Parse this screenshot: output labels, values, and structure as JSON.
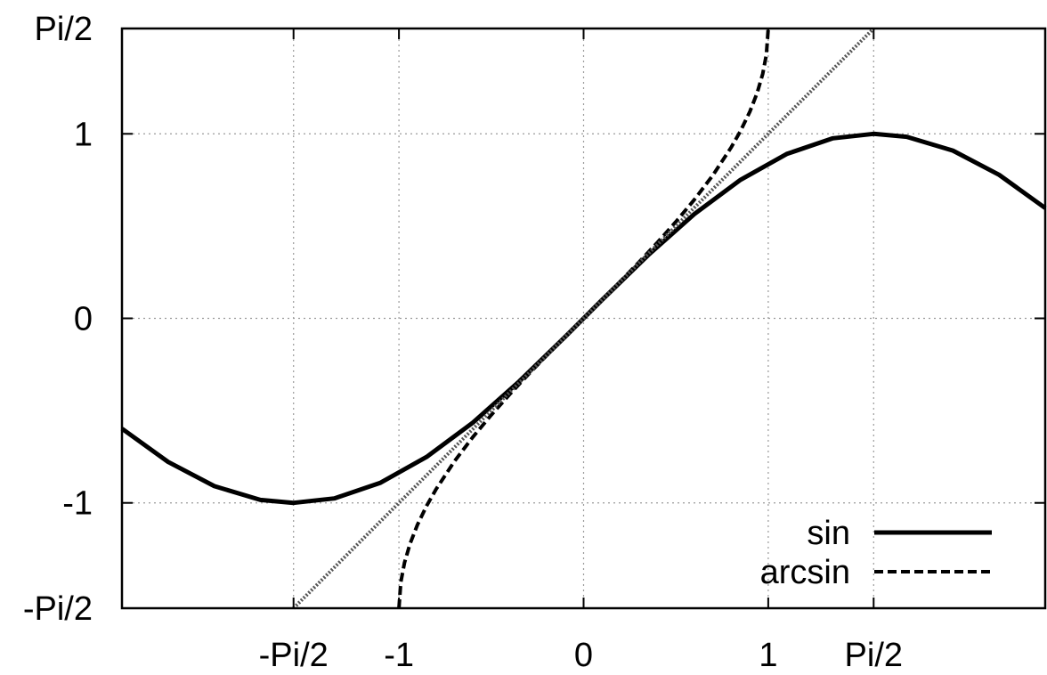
{
  "chart_data": {
    "type": "line",
    "xlim": [
      -2.5,
      2.5
    ],
    "ylim": [
      -1.5708,
      1.5708
    ],
    "grid": true,
    "legend_position": "bottom-right",
    "x_ticks": [
      {
        "value": -1.5708,
        "label": "-Pi/2"
      },
      {
        "value": -1.0,
        "label": "-1"
      },
      {
        "value": 0.0,
        "label": "0"
      },
      {
        "value": 1.0,
        "label": "1"
      },
      {
        "value": 1.5708,
        "label": "Pi/2"
      }
    ],
    "y_ticks": [
      {
        "value": 1.5708,
        "label": "Pi/2"
      },
      {
        "value": 1.0,
        "label": "1"
      },
      {
        "value": 0.0,
        "label": "0"
      },
      {
        "value": -1.0,
        "label": "-1"
      },
      {
        "value": -1.5708,
        "label": "-Pi/2"
      }
    ],
    "series": [
      {
        "name": "sin",
        "style": "solid",
        "color": "#000000",
        "x": [
          -2.5,
          -2.25,
          -2.0,
          -1.75,
          -1.5708,
          -1.35,
          -1.1,
          -0.85,
          -0.6,
          -0.35,
          -0.1,
          0.0,
          0.1,
          0.35,
          0.6,
          0.85,
          1.1,
          1.35,
          1.5708,
          1.75,
          2.0,
          2.25,
          2.5
        ],
        "y": [
          -0.598,
          -0.778,
          -0.909,
          -0.984,
          -1.0,
          -0.976,
          -0.891,
          -0.751,
          -0.565,
          -0.343,
          -0.1,
          0.0,
          0.1,
          0.343,
          0.565,
          0.751,
          0.891,
          0.976,
          1.0,
          0.984,
          0.909,
          0.778,
          0.598
        ]
      },
      {
        "name": "arcsin",
        "style": "dashed",
        "color": "#000000",
        "x": [
          -1.0,
          -0.99,
          -0.97,
          -0.94,
          -0.9,
          -0.85,
          -0.8,
          -0.7,
          -0.6,
          -0.5,
          -0.4,
          -0.3,
          -0.2,
          -0.1,
          0.0,
          0.1,
          0.2,
          0.3,
          0.4,
          0.5,
          0.6,
          0.7,
          0.8,
          0.85,
          0.9,
          0.94,
          0.97,
          0.99,
          1.0
        ],
        "y": [
          -1.5708,
          -1.4293,
          -1.3252,
          -1.2226,
          -1.1198,
          -1.016,
          -0.9273,
          -0.7754,
          -0.6435,
          -0.5236,
          -0.4115,
          -0.3047,
          -0.2014,
          -0.1002,
          0.0,
          0.1002,
          0.2014,
          0.3047,
          0.4115,
          0.5236,
          0.6435,
          0.7754,
          0.9273,
          1.016,
          1.1198,
          1.2226,
          1.3252,
          1.4293,
          1.5708
        ]
      },
      {
        "style": "dotted",
        "color": "#555555",
        "x": [
          -1.5708,
          1.5708
        ],
        "y": [
          -1.5708,
          1.5708
        ]
      }
    ]
  }
}
